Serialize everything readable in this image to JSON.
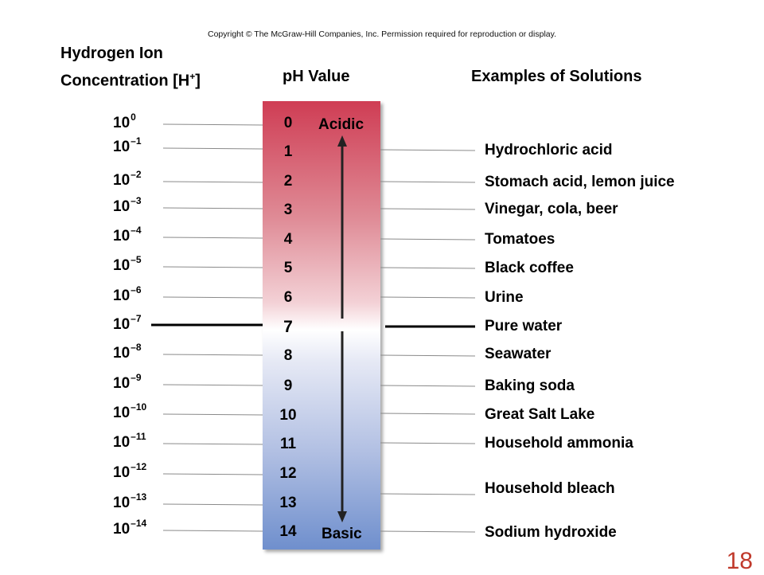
{
  "copyright": "Copyright © The McGraw-Hill Companies, Inc. Permission required for reproduction or display.",
  "headers": {
    "concentration_line1": "Hydrogen Ion",
    "concentration_line2": "Concentration [H",
    "concentration_sup": "+",
    "concentration_close": "]",
    "ph": "pH Value",
    "examples": "Examples of Solutions"
  },
  "concentrations": [
    {
      "base": "10",
      "exp": "0"
    },
    {
      "base": "10",
      "exp": "–1"
    },
    {
      "base": "10",
      "exp": "–2"
    },
    {
      "base": "10",
      "exp": "–3"
    },
    {
      "base": "10",
      "exp": "–4"
    },
    {
      "base": "10",
      "exp": "–5"
    },
    {
      "base": "10",
      "exp": "–6"
    },
    {
      "base": "10",
      "exp": "–7"
    },
    {
      "base": "10",
      "exp": "–8"
    },
    {
      "base": "10",
      "exp": "–9"
    },
    {
      "base": "10",
      "exp": "–10"
    },
    {
      "base": "10",
      "exp": "–11"
    },
    {
      "base": "10",
      "exp": "–12"
    },
    {
      "base": "10",
      "exp": "–13"
    },
    {
      "base": "10",
      "exp": "–14"
    }
  ],
  "ph_values": [
    "0",
    "1",
    "2",
    "3",
    "4",
    "5",
    "6",
    "7",
    "8",
    "9",
    "10",
    "11",
    "12",
    "13",
    "14"
  ],
  "scale_labels": {
    "acidic": "Acidic",
    "basic": "Basic"
  },
  "examples": [
    "Hydrochloric acid",
    "Stomach acid, lemon juice",
    "Vinegar, cola, beer",
    "Tomatoes",
    "Black coffee",
    "Urine",
    "Pure water",
    "Seawater",
    "Baking soda",
    "Great Salt Lake",
    "Household ammonia",
    "Household bleach",
    "Sodium hydroxide"
  ],
  "slide_number": "18",
  "colors": {
    "acidic": "#cf3d54",
    "neutral": "#ffffff",
    "basic": "#6f8fcd",
    "slide_number": "#c0392b"
  }
}
